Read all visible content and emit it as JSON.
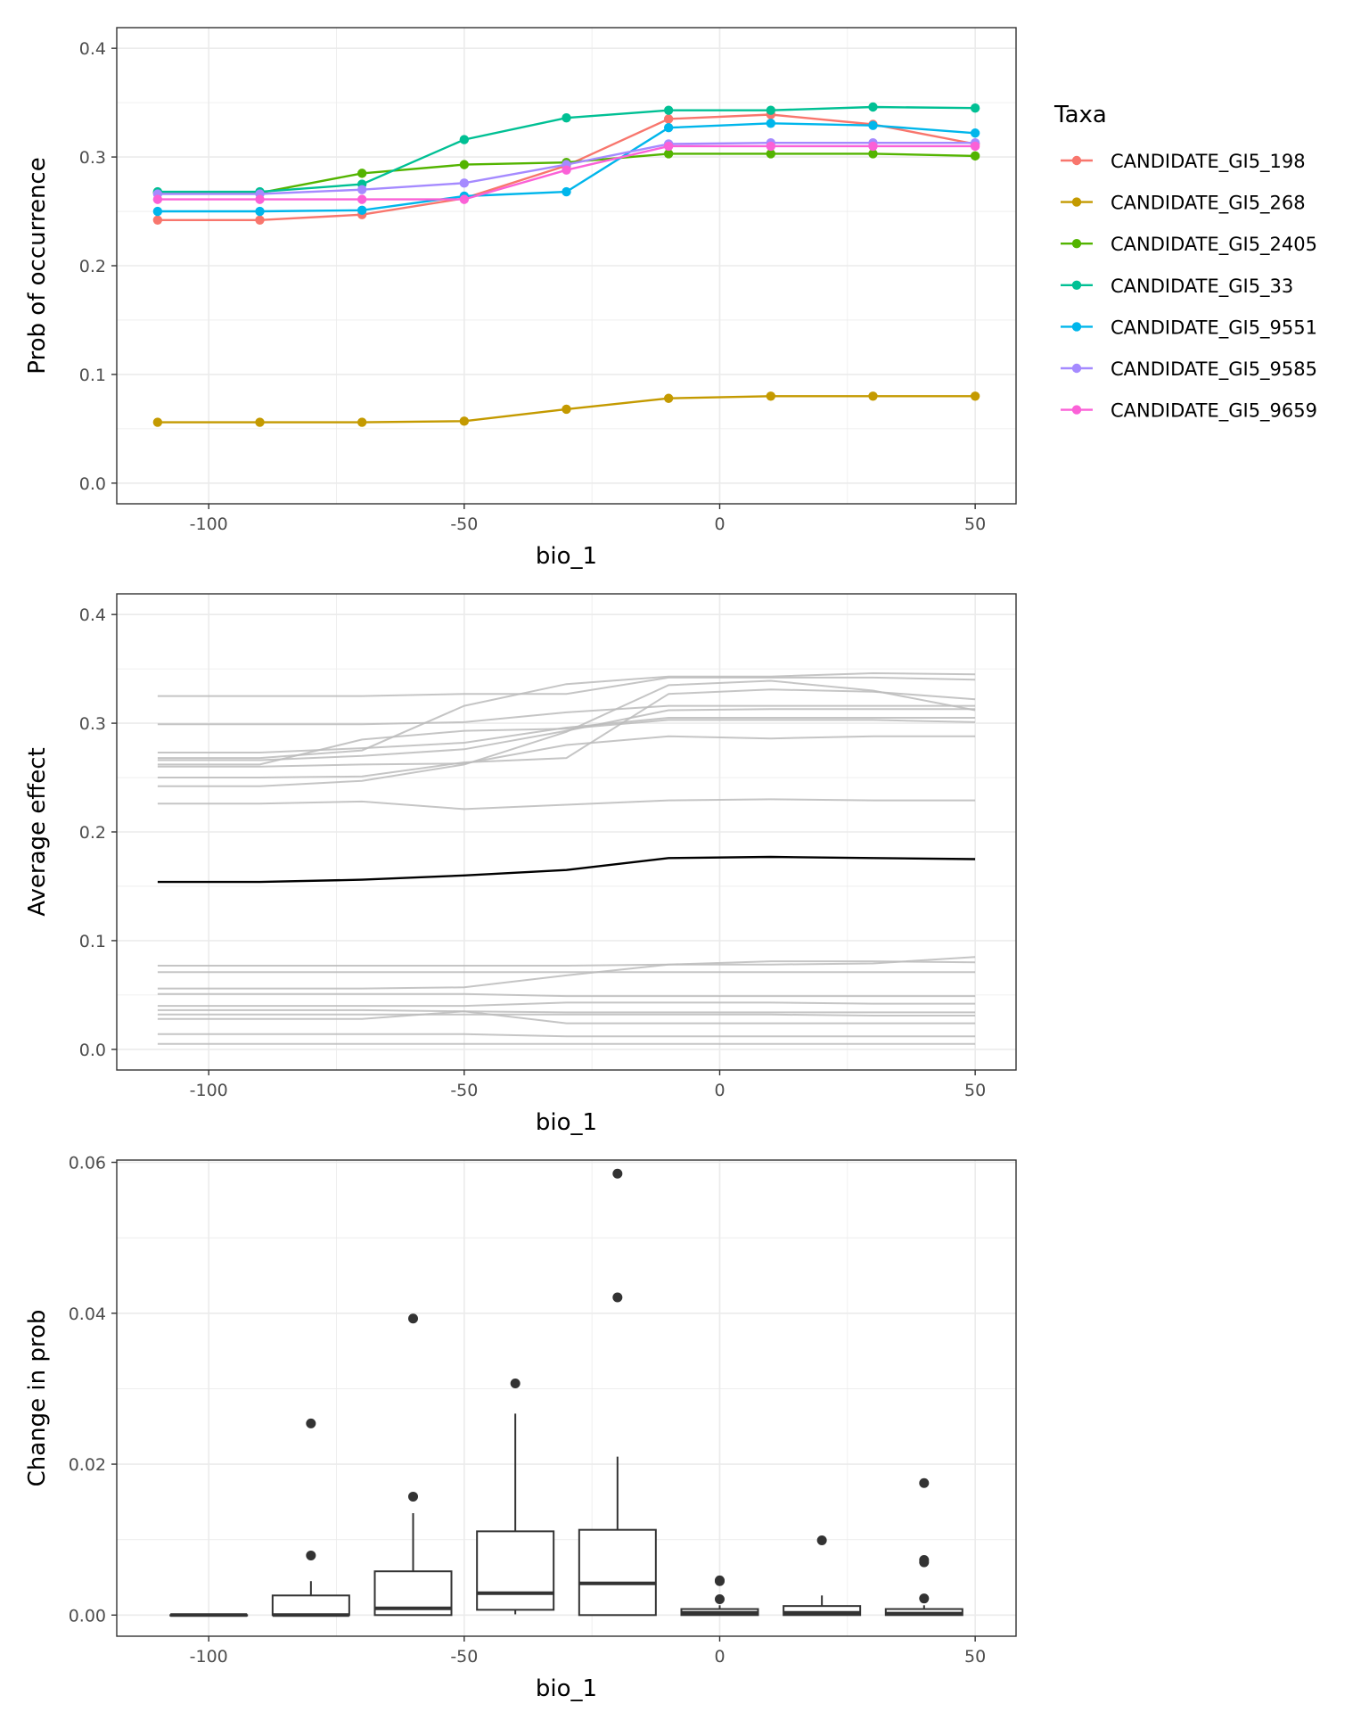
{
  "chart_data": [
    {
      "type": "line",
      "xlabel": "bio_1",
      "ylabel": "Prob of occurrence",
      "xlim": [
        -118,
        58
      ],
      "ylim": [
        -0.019,
        0.419
      ],
      "xticks": [
        -100,
        -50,
        0,
        50
      ],
      "xtick_labels": [
        "-100",
        "-50",
        "0",
        "50"
      ],
      "yticks": [
        0,
        0.1,
        0.2,
        0.3,
        0.4
      ],
      "ytick_labels": [
        "0.0",
        "0.1",
        "0.2",
        "0.3",
        "0.4"
      ],
      "grid": true,
      "legend": {
        "title": "Taxa",
        "position": "right"
      },
      "x": [
        -110,
        -90,
        -70,
        -50,
        -30,
        -10,
        10,
        30,
        50
      ],
      "series": [
        {
          "name": "CANDIDATE_GI5_198",
          "color": "#F8766D",
          "values": [
            0.242,
            0.242,
            0.247,
            0.262,
            0.292,
            0.335,
            0.339,
            0.33,
            0.312
          ]
        },
        {
          "name": "CANDIDATE_GI5_268",
          "color": "#C49A00",
          "values": [
            0.056,
            0.056,
            0.056,
            0.057,
            0.068,
            0.078,
            0.08,
            0.08,
            0.08
          ]
        },
        {
          "name": "CANDIDATE_GI5_2405",
          "color": "#53B400",
          "values": [
            0.267,
            0.267,
            0.285,
            0.293,
            0.295,
            0.303,
            0.303,
            0.303,
            0.301
          ]
        },
        {
          "name": "CANDIDATE_GI5_33",
          "color": "#00C094",
          "values": [
            0.268,
            0.268,
            0.275,
            0.316,
            0.336,
            0.343,
            0.343,
            0.346,
            0.345
          ]
        },
        {
          "name": "CANDIDATE_GI5_9551",
          "color": "#00B6EB",
          "values": [
            0.25,
            0.25,
            0.251,
            0.264,
            0.268,
            0.327,
            0.331,
            0.329,
            0.322
          ]
        },
        {
          "name": "CANDIDATE_GI5_9585",
          "color": "#A58AFF",
          "values": [
            0.266,
            0.266,
            0.27,
            0.276,
            0.293,
            0.312,
            0.313,
            0.313,
            0.313
          ]
        },
        {
          "name": "CANDIDATE_GI5_9659",
          "color": "#FB61D7",
          "values": [
            0.261,
            0.261,
            0.261,
            0.261,
            0.288,
            0.31,
            0.31,
            0.31,
            0.31
          ]
        }
      ]
    },
    {
      "type": "line",
      "xlabel": "bio_1",
      "ylabel": "Average effect",
      "xlim": [
        -118,
        58
      ],
      "ylim": [
        -0.019,
        0.419
      ],
      "xticks": [
        -100,
        -50,
        0,
        50
      ],
      "xtick_labels": [
        "-100",
        "-50",
        "0",
        "50"
      ],
      "yticks": [
        0,
        0.1,
        0.2,
        0.3,
        0.4
      ],
      "ytick_labels": [
        "0.0",
        "0.1",
        "0.2",
        "0.3",
        "0.4"
      ],
      "grid": true,
      "x": [
        -110,
        -90,
        -70,
        -50,
        -30,
        -10,
        10,
        30,
        50
      ],
      "series": [
        {
          "values": [
            0.325,
            0.325,
            0.325,
            0.327,
            0.327,
            0.342,
            0.342,
            0.342,
            0.34
          ],
          "color": "#bbbbbb"
        },
        {
          "values": [
            0.268,
            0.268,
            0.275,
            0.316,
            0.336,
            0.343,
            0.343,
            0.346,
            0.345
          ],
          "color": "#bbbbbb"
        },
        {
          "values": [
            0.299,
            0.299,
            0.299,
            0.301,
            0.31,
            0.316,
            0.316,
            0.316,
            0.316
          ],
          "color": "#bbbbbb"
        },
        {
          "values": [
            0.273,
            0.273,
            0.277,
            0.282,
            0.296,
            0.305,
            0.305,
            0.305,
            0.305
          ],
          "color": "#bbbbbb"
        },
        {
          "values": [
            0.242,
            0.242,
            0.247,
            0.262,
            0.292,
            0.335,
            0.339,
            0.33,
            0.312
          ],
          "color": "#bbbbbb"
        },
        {
          "values": [
            0.25,
            0.25,
            0.251,
            0.264,
            0.268,
            0.327,
            0.331,
            0.329,
            0.322
          ],
          "color": "#bbbbbb"
        },
        {
          "values": [
            0.26,
            0.26,
            0.262,
            0.263,
            0.28,
            0.288,
            0.286,
            0.288,
            0.288
          ],
          "color": "#bbbbbb"
        },
        {
          "values": [
            0.266,
            0.266,
            0.27,
            0.276,
            0.293,
            0.312,
            0.313,
            0.313,
            0.313
          ],
          "color": "#bbbbbb"
        },
        {
          "values": [
            0.262,
            0.262,
            0.285,
            0.293,
            0.295,
            0.303,
            0.303,
            0.303,
            0.301
          ],
          "color": "#bbbbbb"
        },
        {
          "values": [
            0.226,
            0.226,
            0.228,
            0.221,
            0.225,
            0.229,
            0.23,
            0.229,
            0.229
          ],
          "color": "#bbbbbb"
        },
        {
          "values": [
            0.077,
            0.077,
            0.077,
            0.077,
            0.077,
            0.078,
            0.081,
            0.081,
            0.08
          ],
          "color": "#bbbbbb"
        },
        {
          "values": [
            0.071,
            0.071,
            0.071,
            0.071,
            0.071,
            0.071,
            0.071,
            0.071,
            0.071
          ],
          "color": "#bbbbbb"
        },
        {
          "values": [
            0.056,
            0.056,
            0.056,
            0.057,
            0.068,
            0.078,
            0.078,
            0.079,
            0.085
          ],
          "color": "#bbbbbb"
        },
        {
          "values": [
            0.051,
            0.051,
            0.051,
            0.051,
            0.049,
            0.049,
            0.049,
            0.049,
            0.049
          ],
          "color": "#bbbbbb"
        },
        {
          "values": [
            0.04,
            0.04,
            0.04,
            0.04,
            0.043,
            0.043,
            0.043,
            0.042,
            0.042
          ],
          "color": "#bbbbbb"
        },
        {
          "values": [
            0.036,
            0.036,
            0.036,
            0.035,
            0.034,
            0.034,
            0.034,
            0.034,
            0.034
          ],
          "color": "#bbbbbb"
        },
        {
          "values": [
            0.032,
            0.032,
            0.032,
            0.032,
            0.032,
            0.032,
            0.032,
            0.031,
            0.031
          ],
          "color": "#bbbbbb"
        },
        {
          "values": [
            0.028,
            0.028,
            0.028,
            0.035,
            0.024,
            0.024,
            0.024,
            0.024,
            0.024
          ],
          "color": "#bbbbbb"
        },
        {
          "values": [
            0.014,
            0.014,
            0.014,
            0.014,
            0.012,
            0.012,
            0.012,
            0.012,
            0.012
          ],
          "color": "#bbbbbb"
        },
        {
          "values": [
            0.005,
            0.005,
            0.005,
            0.005,
            0.005,
            0.005,
            0.005,
            0.005,
            0.005
          ],
          "color": "#bbbbbb"
        },
        {
          "values": [
            0.154,
            0.154,
            0.156,
            0.16,
            0.165,
            0.176,
            0.177,
            0.176,
            0.175
          ],
          "color": "#000000"
        }
      ]
    },
    {
      "type": "box",
      "xlabel": "bio_1",
      "ylabel": "Change in prob",
      "xlim": [
        -118,
        58
      ],
      "ylim": [
        -0.0028,
        0.0603
      ],
      "xticks": [
        -100,
        -50,
        0,
        50
      ],
      "xtick_labels": [
        "-100",
        "-50",
        "0",
        "50"
      ],
      "yticks": [
        0,
        0.02,
        0.04,
        0.06
      ],
      "ytick_labels": [
        "0.00",
        "0.02",
        "0.04",
        "0.06"
      ],
      "grid": true,
      "boxes": [
        {
          "x": -100,
          "q1": 0.0,
          "median": 0.0,
          "q3": 0.0,
          "whisker_low": 0.0,
          "whisker_high": 0.0,
          "outliers": []
        },
        {
          "x": -80,
          "q1": 0.0,
          "median": 0.0,
          "q3": 0.0026,
          "whisker_low": 0.0,
          "whisker_high": 0.0045,
          "outliers": [
            0.0079,
            0.0254
          ]
        },
        {
          "x": -60,
          "q1": 0.0,
          "median": 0.0009,
          "q3": 0.0058,
          "whisker_low": 0.0,
          "whisker_high": 0.0135,
          "outliers": [
            0.0157,
            0.0393
          ]
        },
        {
          "x": -40,
          "q1": 0.0007,
          "median": 0.0029,
          "q3": 0.0111,
          "whisker_low": 0.0001,
          "whisker_high": 0.0267,
          "outliers": [
            0.0307
          ]
        },
        {
          "x": -20,
          "q1": 0.0,
          "median": 0.0042,
          "q3": 0.0113,
          "whisker_low": 0.0,
          "whisker_high": 0.021,
          "outliers": [
            0.0421,
            0.0585
          ]
        },
        {
          "x": 0,
          "q1": 0.0,
          "median": 0.0003,
          "q3": 0.0008,
          "whisker_low": 0.0,
          "whisker_high": 0.0013,
          "outliers": [
            0.0021,
            0.0045,
            0.0046
          ]
        },
        {
          "x": 20,
          "q1": 0.0,
          "median": 0.0003,
          "q3": 0.0012,
          "whisker_low": 0.0,
          "whisker_high": 0.0026,
          "outliers": [
            0.0099
          ]
        },
        {
          "x": 40,
          "q1": 0.0,
          "median": 0.0002,
          "q3": 0.0008,
          "whisker_low": 0.0,
          "whisker_high": 0.0013,
          "outliers": [
            0.0022,
            0.007,
            0.0073,
            0.0175
          ]
        }
      ]
    }
  ]
}
